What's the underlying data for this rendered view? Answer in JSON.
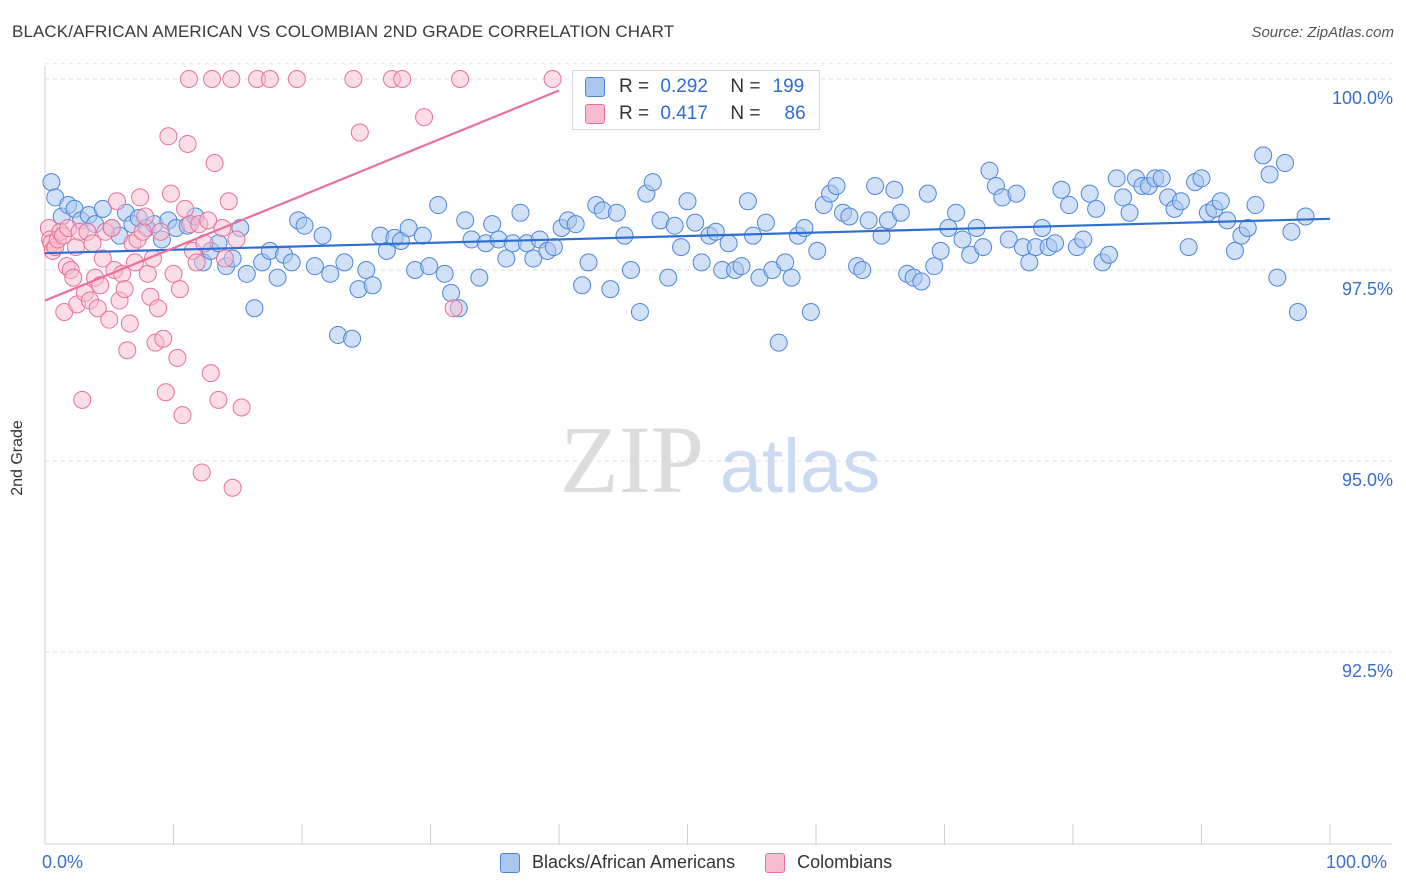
{
  "title": "BLACK/AFRICAN AMERICAN VS COLOMBIAN 2ND GRADE CORRELATION CHART",
  "source": "Source: ZipAtlas.com",
  "watermark": {
    "zip": "ZIP",
    "atlas": "atlas"
  },
  "stats": {
    "row1": {
      "r_label": "R =",
      "r_value": "0.292",
      "n_label": "N =",
      "n_value": "199"
    },
    "row2": {
      "r_label": "R =",
      "r_value": "0.417",
      "n_label": "N =",
      "n_value": "86"
    }
  },
  "colors": {
    "blue": "#4f86d8",
    "blue_fill": "#a9c6ee",
    "pink": "#e8719a",
    "pink_fill": "#f7bcd0",
    "tick_text": "#3a6fc4"
  },
  "chart_data": {
    "type": "scatter",
    "title": "BLACK/AFRICAN AMERICAN VS COLOMBIAN 2ND GRADE CORRELATION CHART",
    "xlabel": "",
    "ylabel": "2nd Grade",
    "xlim": [
      0,
      100
    ],
    "ylim": [
      90.0,
      100.2
    ],
    "x_tick_labels": [
      "0.0%",
      "100.0%"
    ],
    "y_tick_labels": [
      "100.0%",
      "97.5%",
      "95.0%",
      "92.5%"
    ],
    "y_ticks": [
      100.0,
      97.5,
      95.0,
      92.5
    ],
    "legend": [
      "Blacks/African Americans",
      "Colombians"
    ],
    "series": [
      {
        "name": "Blacks/African Americans",
        "color": "#4f86d8",
        "trend": {
          "x": [
            0,
            100
          ],
          "y": [
            97.72,
            98.17
          ]
        },
        "points": [
          [
            0.5,
            98.65
          ],
          [
            0.8,
            98.45
          ],
          [
            1.3,
            98.2
          ],
          [
            1.8,
            98.35
          ],
          [
            2.3,
            98.3
          ],
          [
            2.8,
            98.15
          ],
          [
            3.4,
            98.22
          ],
          [
            3.9,
            98.1
          ],
          [
            4.5,
            98.3
          ],
          [
            5.2,
            98.05
          ],
          [
            5.8,
            97.95
          ],
          [
            6.3,
            98.25
          ],
          [
            6.8,
            98.1
          ],
          [
            7.3,
            98.18
          ],
          [
            7.9,
            98.05
          ],
          [
            8.5,
            98.1
          ],
          [
            9.1,
            97.9
          ],
          [
            9.6,
            98.15
          ],
          [
            10.2,
            98.05
          ],
          [
            11.1,
            98.08
          ],
          [
            11.7,
            98.2
          ],
          [
            12.3,
            97.6
          ],
          [
            12.9,
            97.75
          ],
          [
            13.5,
            97.85
          ],
          [
            14.1,
            97.55
          ],
          [
            14.6,
            97.65
          ],
          [
            15.2,
            98.05
          ],
          [
            15.7,
            97.45
          ],
          [
            16.3,
            97.0
          ],
          [
            16.9,
            97.6
          ],
          [
            17.5,
            97.75
          ],
          [
            18.1,
            97.4
          ],
          [
            18.6,
            97.7
          ],
          [
            19.2,
            97.6
          ],
          [
            19.7,
            98.15
          ],
          [
            20.2,
            98.08
          ],
          [
            21.0,
            97.55
          ],
          [
            21.6,
            97.95
          ],
          [
            22.2,
            97.45
          ],
          [
            22.8,
            96.65
          ],
          [
            23.3,
            97.6
          ],
          [
            23.9,
            96.6
          ],
          [
            24.4,
            97.25
          ],
          [
            25.0,
            97.5
          ],
          [
            25.5,
            97.3
          ],
          [
            26.1,
            97.95
          ],
          [
            26.6,
            97.75
          ],
          [
            27.2,
            97.92
          ],
          [
            27.7,
            97.88
          ],
          [
            28.3,
            98.05
          ],
          [
            28.8,
            97.5
          ],
          [
            29.4,
            97.95
          ],
          [
            29.9,
            97.55
          ],
          [
            30.6,
            98.35
          ],
          [
            31.1,
            97.45
          ],
          [
            31.6,
            97.2
          ],
          [
            32.2,
            97.0
          ],
          [
            32.7,
            98.15
          ],
          [
            33.2,
            97.9
          ],
          [
            33.8,
            97.4
          ],
          [
            34.3,
            97.85
          ],
          [
            34.8,
            98.1
          ],
          [
            35.3,
            97.9
          ],
          [
            35.9,
            97.65
          ],
          [
            36.4,
            97.85
          ],
          [
            37.0,
            98.25
          ],
          [
            37.5,
            97.85
          ],
          [
            38.0,
            97.65
          ],
          [
            38.5,
            97.9
          ],
          [
            39.1,
            97.75
          ],
          [
            39.6,
            97.8
          ],
          [
            40.2,
            98.05
          ],
          [
            40.7,
            98.15
          ],
          [
            41.3,
            98.1
          ],
          [
            41.8,
            97.3
          ],
          [
            42.3,
            97.6
          ],
          [
            42.9,
            98.35
          ],
          [
            43.4,
            98.28
          ],
          [
            44.0,
            97.25
          ],
          [
            44.5,
            98.25
          ],
          [
            45.1,
            97.95
          ],
          [
            45.6,
            97.5
          ],
          [
            46.3,
            96.95
          ],
          [
            46.8,
            98.5
          ],
          [
            47.3,
            98.65
          ],
          [
            47.9,
            98.15
          ],
          [
            48.5,
            97.4
          ],
          [
            49.0,
            98.08
          ],
          [
            49.5,
            97.8
          ],
          [
            50.0,
            98.4
          ],
          [
            50.6,
            98.12
          ],
          [
            51.1,
            97.6
          ],
          [
            51.7,
            97.95
          ],
          [
            52.2,
            98.0
          ],
          [
            52.7,
            97.5
          ],
          [
            53.2,
            97.85
          ],
          [
            53.7,
            97.5
          ],
          [
            54.2,
            97.55
          ],
          [
            54.7,
            98.4
          ],
          [
            55.1,
            97.95
          ],
          [
            55.6,
            97.4
          ],
          [
            56.1,
            98.12
          ],
          [
            56.6,
            97.5
          ],
          [
            57.1,
            96.55
          ],
          [
            57.6,
            97.6
          ],
          [
            58.1,
            97.4
          ],
          [
            58.6,
            97.95
          ],
          [
            59.1,
            98.05
          ],
          [
            59.6,
            96.95
          ],
          [
            60.1,
            97.75
          ],
          [
            60.6,
            98.35
          ],
          [
            61.1,
            98.5
          ],
          [
            61.6,
            98.6
          ],
          [
            62.1,
            98.25
          ],
          [
            62.6,
            98.2
          ],
          [
            63.2,
            97.55
          ],
          [
            63.6,
            97.5
          ],
          [
            64.1,
            98.15
          ],
          [
            64.6,
            98.6
          ],
          [
            65.1,
            97.95
          ],
          [
            65.6,
            98.15
          ],
          [
            66.1,
            98.55
          ],
          [
            66.6,
            98.25
          ],
          [
            67.1,
            97.45
          ],
          [
            67.6,
            97.4
          ],
          [
            68.2,
            97.35
          ],
          [
            68.7,
            98.5
          ],
          [
            69.2,
            97.55
          ],
          [
            69.7,
            97.75
          ],
          [
            70.3,
            98.05
          ],
          [
            70.9,
            98.25
          ],
          [
            71.4,
            97.9
          ],
          [
            72.0,
            97.7
          ],
          [
            72.5,
            98.05
          ],
          [
            73.0,
            97.8
          ],
          [
            73.5,
            98.8
          ],
          [
            74.0,
            98.6
          ],
          [
            74.5,
            98.45
          ],
          [
            75.0,
            97.9
          ],
          [
            75.6,
            98.5
          ],
          [
            76.1,
            97.8
          ],
          [
            76.6,
            97.6
          ],
          [
            77.1,
            97.8
          ],
          [
            77.6,
            98.05
          ],
          [
            78.1,
            97.8
          ],
          [
            78.6,
            97.85
          ],
          [
            79.1,
            98.55
          ],
          [
            79.7,
            98.35
          ],
          [
            80.3,
            97.8
          ],
          [
            80.8,
            97.9
          ],
          [
            81.3,
            98.5
          ],
          [
            81.8,
            98.3
          ],
          [
            82.3,
            97.6
          ],
          [
            82.8,
            97.7
          ],
          [
            83.4,
            98.7
          ],
          [
            83.9,
            98.45
          ],
          [
            84.4,
            98.25
          ],
          [
            84.9,
            98.7
          ],
          [
            85.4,
            98.6
          ],
          [
            85.9,
            98.6
          ],
          [
            86.4,
            98.7
          ],
          [
            86.9,
            98.7
          ],
          [
            87.4,
            98.45
          ],
          [
            87.9,
            98.3
          ],
          [
            88.4,
            98.4
          ],
          [
            89.0,
            97.8
          ],
          [
            89.5,
            98.65
          ],
          [
            90.0,
            98.7
          ],
          [
            90.5,
            98.25
          ],
          [
            91.0,
            98.3
          ],
          [
            91.5,
            98.4
          ],
          [
            92.0,
            98.15
          ],
          [
            92.6,
            97.75
          ],
          [
            93.1,
            97.95
          ],
          [
            93.6,
            98.05
          ],
          [
            94.2,
            98.35
          ],
          [
            94.8,
            99.0
          ],
          [
            95.3,
            98.75
          ],
          [
            95.9,
            97.4
          ],
          [
            96.5,
            98.9
          ],
          [
            97.0,
            98.0
          ],
          [
            97.5,
            96.95
          ],
          [
            98.1,
            98.2
          ]
        ]
      },
      {
        "name": "Colombians",
        "color": "#e8719a",
        "trend": {
          "x": [
            0,
            40
          ],
          "y": [
            97.1,
            99.85
          ]
        },
        "points": [
          [
            0.3,
            98.05
          ],
          [
            0.4,
            97.9
          ],
          [
            0.5,
            97.85
          ],
          [
            0.6,
            97.75
          ],
          [
            0.8,
            97.8
          ],
          [
            1.0,
            97.9
          ],
          [
            1.2,
            98.0
          ],
          [
            1.4,
            97.95
          ],
          [
            1.5,
            96.95
          ],
          [
            1.7,
            97.55
          ],
          [
            1.8,
            98.05
          ],
          [
            2.0,
            97.5
          ],
          [
            2.2,
            97.4
          ],
          [
            2.4,
            97.8
          ],
          [
            2.5,
            97.05
          ],
          [
            2.7,
            98.0
          ],
          [
            2.9,
            95.8
          ],
          [
            3.1,
            97.2
          ],
          [
            3.3,
            98.0
          ],
          [
            3.5,
            97.1
          ],
          [
            3.7,
            97.85
          ],
          [
            3.9,
            97.4
          ],
          [
            4.1,
            97.0
          ],
          [
            4.3,
            97.3
          ],
          [
            4.5,
            97.65
          ],
          [
            4.7,
            98.0
          ],
          [
            5.0,
            96.85
          ],
          [
            5.2,
            98.05
          ],
          [
            5.4,
            97.5
          ],
          [
            5.6,
            98.4
          ],
          [
            5.8,
            97.1
          ],
          [
            6.0,
            97.45
          ],
          [
            6.2,
            97.25
          ],
          [
            6.4,
            96.45
          ],
          [
            6.6,
            96.8
          ],
          [
            6.8,
            97.85
          ],
          [
            7.0,
            97.6
          ],
          [
            7.2,
            97.9
          ],
          [
            7.4,
            98.45
          ],
          [
            7.6,
            98.0
          ],
          [
            7.8,
            98.2
          ],
          [
            8.0,
            97.45
          ],
          [
            8.2,
            97.15
          ],
          [
            8.4,
            97.65
          ],
          [
            8.6,
            96.55
          ],
          [
            8.8,
            97.0
          ],
          [
            9.0,
            98.0
          ],
          [
            9.2,
            96.6
          ],
          [
            9.4,
            95.9
          ],
          [
            9.6,
            99.25
          ],
          [
            9.8,
            98.5
          ],
          [
            10.0,
            97.45
          ],
          [
            10.3,
            96.35
          ],
          [
            10.5,
            97.25
          ],
          [
            10.7,
            95.6
          ],
          [
            10.9,
            98.3
          ],
          [
            11.1,
            99.15
          ],
          [
            11.3,
            98.1
          ],
          [
            11.5,
            97.75
          ],
          [
            11.8,
            97.6
          ],
          [
            12.0,
            98.1
          ],
          [
            12.2,
            94.85
          ],
          [
            12.4,
            97.85
          ],
          [
            12.7,
            98.15
          ],
          [
            12.9,
            96.15
          ],
          [
            13.2,
            98.9
          ],
          [
            13.5,
            95.8
          ],
          [
            13.8,
            98.05
          ],
          [
            14.0,
            97.65
          ],
          [
            14.3,
            98.4
          ],
          [
            14.6,
            94.65
          ],
          [
            14.9,
            97.9
          ],
          [
            15.3,
            95.7
          ],
          [
            11.2,
            100.0
          ],
          [
            13.0,
            100.0
          ],
          [
            14.5,
            100.0
          ],
          [
            16.5,
            100.0
          ],
          [
            17.5,
            100.0
          ],
          [
            19.6,
            100.0
          ],
          [
            24.0,
            100.0
          ],
          [
            27.0,
            100.0
          ],
          [
            27.8,
            100.0
          ],
          [
            32.3,
            100.0
          ],
          [
            39.5,
            100.0
          ],
          [
            24.5,
            99.3
          ],
          [
            29.5,
            99.5
          ],
          [
            31.8,
            97.0
          ]
        ]
      }
    ]
  }
}
